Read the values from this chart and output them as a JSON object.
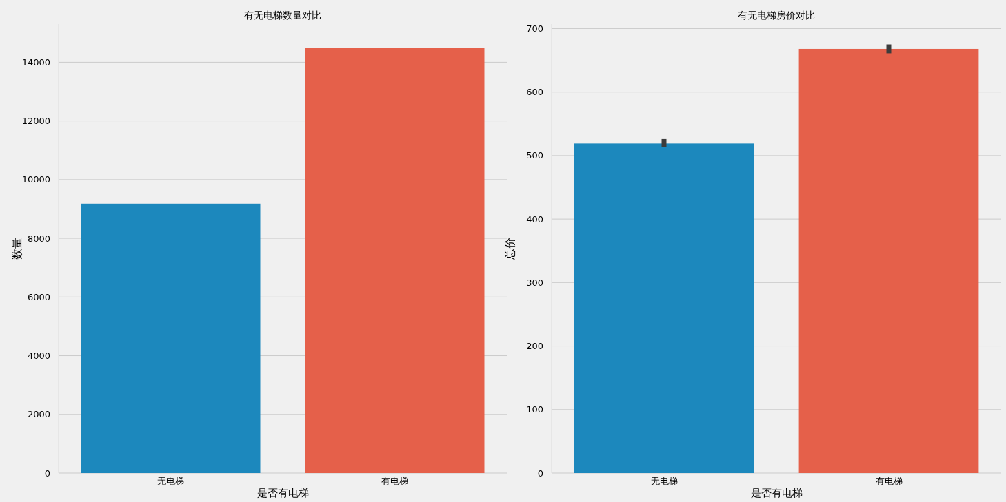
{
  "chart_data": [
    {
      "type": "bar",
      "title": "有无电梯数量对比",
      "xlabel": "是否有电梯",
      "ylabel": "数量",
      "categories": [
        "无电梯",
        "有电梯"
      ],
      "values": [
        9180,
        14500
      ],
      "colors": [
        "#1c88bd",
        "#e5604a"
      ],
      "ylim": [
        0,
        15300
      ],
      "yticks": [
        0,
        2000,
        4000,
        6000,
        8000,
        10000,
        12000,
        14000
      ],
      "grid": "y"
    },
    {
      "type": "bar",
      "title": "有无电梯房价对比",
      "xlabel": "是否有电梯",
      "ylabel": "总价",
      "categories": [
        "无电梯",
        "有电梯"
      ],
      "values": [
        519,
        668
      ],
      "errors": [
        [
          513,
          526
        ],
        [
          661,
          675
        ]
      ],
      "colors": [
        "#1c88bd",
        "#e5604a"
      ],
      "ylim": [
        0,
        707
      ],
      "yticks": [
        0,
        100,
        200,
        300,
        400,
        500,
        600,
        700
      ],
      "grid": "y"
    }
  ]
}
